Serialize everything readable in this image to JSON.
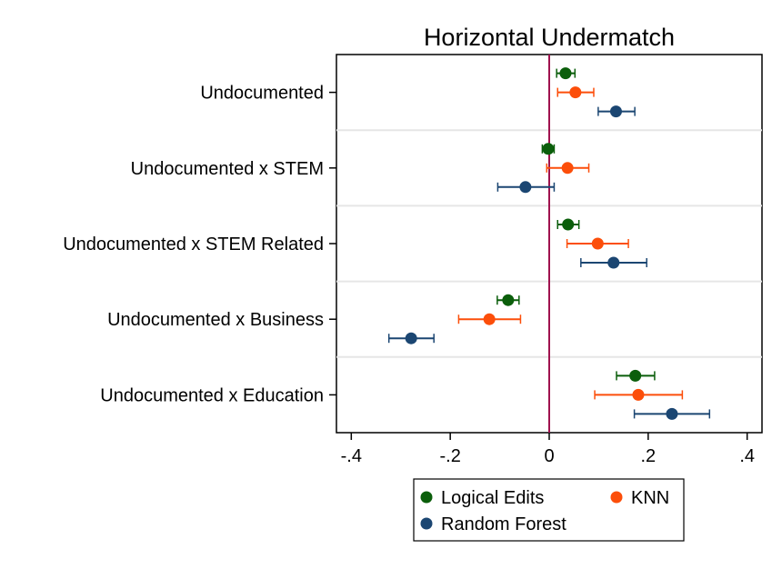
{
  "chart_data": {
    "type": "scatter",
    "title": "Horizontal Undermatch",
    "xlabel": "",
    "ylabel": "",
    "xlim": [
      -0.43,
      0.43
    ],
    "xticks": [
      -0.4,
      -0.2,
      0,
      0.2,
      0.4
    ],
    "xtick_labels": [
      "-.4",
      "-.2",
      "0",
      ".2",
      ".4"
    ],
    "reference_line": {
      "x": 0,
      "color": "#a0124e"
    },
    "categories": [
      "Undocumented",
      "Undocumented x STEM",
      "Undocumented x STEM Related",
      "Undocumented x Business",
      "Undocumented x Education"
    ],
    "series": [
      {
        "name": "Logical Edits",
        "color": "#0b5e0b",
        "estimates": [
          0.033,
          -0.002,
          0.038,
          -0.083,
          0.174
        ],
        "ci_low": [
          0.015,
          -0.014,
          0.017,
          -0.105,
          0.136
        ],
        "ci_high": [
          0.052,
          0.01,
          0.06,
          -0.061,
          0.213
        ]
      },
      {
        "name": "KNN",
        "color": "#fc4e0a",
        "estimates": [
          0.053,
          0.037,
          0.098,
          -0.121,
          0.18
        ],
        "ci_low": [
          0.017,
          -0.005,
          0.036,
          -0.183,
          0.092
        ],
        "ci_high": [
          0.09,
          0.08,
          0.16,
          -0.058,
          0.269
        ]
      },
      {
        "name": "Random Forest",
        "color": "#1b4672",
        "estimates": [
          0.135,
          -0.048,
          0.13,
          -0.279,
          0.248
        ],
        "ci_low": [
          0.099,
          -0.104,
          0.064,
          -0.324,
          0.172
        ],
        "ci_high": [
          0.173,
          0.01,
          0.197,
          -0.233,
          0.324
        ]
      }
    ],
    "legend": {
      "position": "bottom",
      "columns": 2,
      "entries": [
        "Logical Edits",
        "KNN",
        "Random Forest"
      ]
    },
    "grid": "horizontal separators between categories"
  }
}
